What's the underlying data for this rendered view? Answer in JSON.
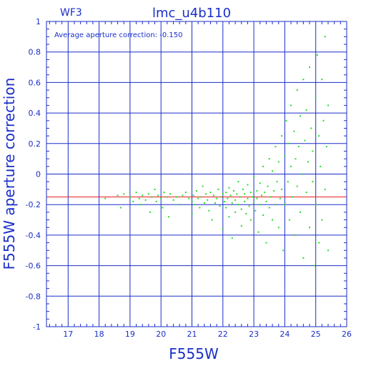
{
  "chart_data": {
    "type": "scatter",
    "title": "lmc_u4b110",
    "chip_label": "WF3",
    "annotation": "Average aperture correction: -0.150",
    "xlabel": "F555W",
    "ylabel": "F555W aperture correction",
    "xlim": [
      16.3,
      26.0
    ],
    "ylim": [
      -1,
      1
    ],
    "xticks": [
      "17",
      "18",
      "19",
      "20",
      "21",
      "22",
      "23",
      "24",
      "25",
      "26"
    ],
    "yticks": [
      "-1",
      "-0.8",
      "-0.6",
      "-0.4",
      "-0.2",
      "0",
      "0.2",
      "0.4",
      "0.6",
      "0.8",
      "1"
    ],
    "grid": true,
    "reference_line": {
      "y": -0.15,
      "color": "#e82020"
    },
    "colors": {
      "axis": "#1a2ec8",
      "points": "#22dd22",
      "reference": "#e82020"
    },
    "points": [
      [
        18.2,
        -0.16
      ],
      [
        18.6,
        -0.14
      ],
      [
        18.7,
        -0.22
      ],
      [
        18.8,
        -0.13
      ],
      [
        19.0,
        -0.15
      ],
      [
        19.1,
        -0.18
      ],
      [
        19.2,
        -0.12
      ],
      [
        19.3,
        -0.16
      ],
      [
        19.35,
        -0.2
      ],
      [
        19.4,
        -0.14
      ],
      [
        19.5,
        -0.17
      ],
      [
        19.6,
        -0.13
      ],
      [
        19.65,
        -0.25
      ],
      [
        19.7,
        -0.15
      ],
      [
        19.8,
        -0.1
      ],
      [
        19.85,
        -0.18
      ],
      [
        19.9,
        -0.14
      ],
      [
        20.0,
        -0.16
      ],
      [
        20.05,
        -0.22
      ],
      [
        20.1,
        -0.12
      ],
      [
        20.2,
        -0.15
      ],
      [
        20.25,
        -0.28
      ],
      [
        20.3,
        -0.13
      ],
      [
        20.4,
        -0.17
      ],
      [
        20.5,
        -0.15
      ],
      [
        20.6,
        -0.2
      ],
      [
        20.7,
        -0.14
      ],
      [
        20.8,
        -0.12
      ],
      [
        20.9,
        -0.16
      ],
      [
        21.0,
        -0.18
      ],
      [
        21.0,
        -0.26
      ],
      [
        21.05,
        -0.14
      ],
      [
        21.1,
        -0.2
      ],
      [
        21.15,
        -0.11
      ],
      [
        21.2,
        -0.16
      ],
      [
        21.25,
        -0.22
      ],
      [
        21.3,
        -0.15
      ],
      [
        21.35,
        -0.08
      ],
      [
        21.4,
        -0.19
      ],
      [
        21.45,
        -0.13
      ],
      [
        21.5,
        -0.17
      ],
      [
        21.55,
        -0.24
      ],
      [
        21.6,
        -0.12
      ],
      [
        21.65,
        -0.3
      ],
      [
        21.7,
        -0.14
      ],
      [
        21.75,
        -0.19
      ],
      [
        21.8,
        -0.16
      ],
      [
        21.85,
        -0.1
      ],
      [
        21.9,
        -0.21
      ],
      [
        21.95,
        -0.15
      ],
      [
        22.0,
        -0.13
      ],
      [
        22.0,
        -0.36
      ],
      [
        22.05,
        -0.18
      ],
      [
        22.1,
        -0.22
      ],
      [
        22.1,
        -0.12
      ],
      [
        22.15,
        -0.16
      ],
      [
        22.2,
        -0.28
      ],
      [
        22.2,
        -0.09
      ],
      [
        22.25,
        -0.14
      ],
      [
        22.3,
        -0.19
      ],
      [
        22.3,
        -0.42
      ],
      [
        22.35,
        -0.11
      ],
      [
        22.4,
        -0.17
      ],
      [
        22.4,
        -0.25
      ],
      [
        22.45,
        -0.13
      ],
      [
        22.5,
        -0.2
      ],
      [
        22.5,
        -0.05
      ],
      [
        22.55,
        -0.15
      ],
      [
        22.6,
        -0.23
      ],
      [
        22.6,
        -0.34
      ],
      [
        22.65,
        -0.1
      ],
      [
        22.7,
        -0.18
      ],
      [
        22.7,
        -0.13
      ],
      [
        22.75,
        -0.26
      ],
      [
        22.8,
        -0.07
      ],
      [
        22.8,
        -0.16
      ],
      [
        22.85,
        -0.21
      ],
      [
        22.9,
        -0.12
      ],
      [
        22.9,
        -0.3
      ],
      [
        22.95,
        -0.15
      ],
      [
        23.0,
        -0.19
      ],
      [
        23.0,
        -0.02
      ],
      [
        23.05,
        -0.24
      ],
      [
        23.1,
        -0.11
      ],
      [
        23.1,
        -0.16
      ],
      [
        23.15,
        -0.38
      ],
      [
        23.2,
        -0.06
      ],
      [
        23.2,
        -0.2
      ],
      [
        23.25,
        -0.14
      ],
      [
        23.3,
        -0.27
      ],
      [
        23.3,
        0.05
      ],
      [
        23.35,
        -0.12
      ],
      [
        23.4,
        -0.18
      ],
      [
        23.4,
        -0.45
      ],
      [
        23.45,
        -0.08
      ],
      [
        23.5,
        -0.22
      ],
      [
        23.5,
        0.1
      ],
      [
        23.55,
        -0.15
      ],
      [
        23.6,
        -0.3
      ],
      [
        23.6,
        0.02
      ],
      [
        23.65,
        -0.11
      ],
      [
        23.7,
        -0.2
      ],
      [
        23.7,
        0.18
      ],
      [
        23.75,
        -0.05
      ],
      [
        23.8,
        -0.35
      ],
      [
        23.8,
        0.08
      ],
      [
        23.85,
        -0.16
      ],
      [
        23.9,
        0.25
      ],
      [
        23.9,
        -0.1
      ],
      [
        23.95,
        -0.5
      ],
      [
        24.0,
        0.12
      ],
      [
        24.0,
        -0.2
      ],
      [
        24.05,
        0.35
      ],
      [
        24.1,
        -0.05
      ],
      [
        24.1,
        0.2
      ],
      [
        24.15,
        -0.3
      ],
      [
        24.2,
        0.05
      ],
      [
        24.2,
        0.45
      ],
      [
        24.25,
        -0.15
      ],
      [
        24.3,
        0.28
      ],
      [
        24.3,
        -0.4
      ],
      [
        24.35,
        0.1
      ],
      [
        24.4,
        0.55
      ],
      [
        24.4,
        -0.08
      ],
      [
        24.45,
        0.18
      ],
      [
        24.5,
        -0.25
      ],
      [
        24.5,
        0.38
      ],
      [
        24.55,
        0.0
      ],
      [
        24.6,
        -0.55
      ],
      [
        24.6,
        0.62
      ],
      [
        24.65,
        0.22
      ],
      [
        24.7,
        -0.12
      ],
      [
        24.7,
        0.42
      ],
      [
        24.75,
        0.08
      ],
      [
        24.8,
        -0.35
      ],
      [
        24.8,
        0.7
      ],
      [
        24.85,
        0.3
      ],
      [
        24.9,
        -0.05
      ],
      [
        24.9,
        0.15
      ],
      [
        24.95,
        -0.6
      ],
      [
        25.0,
        0.5
      ],
      [
        25.0,
        -0.2
      ],
      [
        25.05,
        0.78
      ],
      [
        25.1,
        0.25
      ],
      [
        25.1,
        -0.45
      ],
      [
        25.15,
        0.05
      ],
      [
        25.2,
        0.62
      ],
      [
        25.2,
        -0.3
      ],
      [
        25.25,
        0.35
      ],
      [
        25.3,
        -0.1
      ],
      [
        25.3,
        0.9
      ],
      [
        25.35,
        0.18
      ],
      [
        25.4,
        -0.5
      ],
      [
        25.4,
        0.45
      ]
    ]
  }
}
